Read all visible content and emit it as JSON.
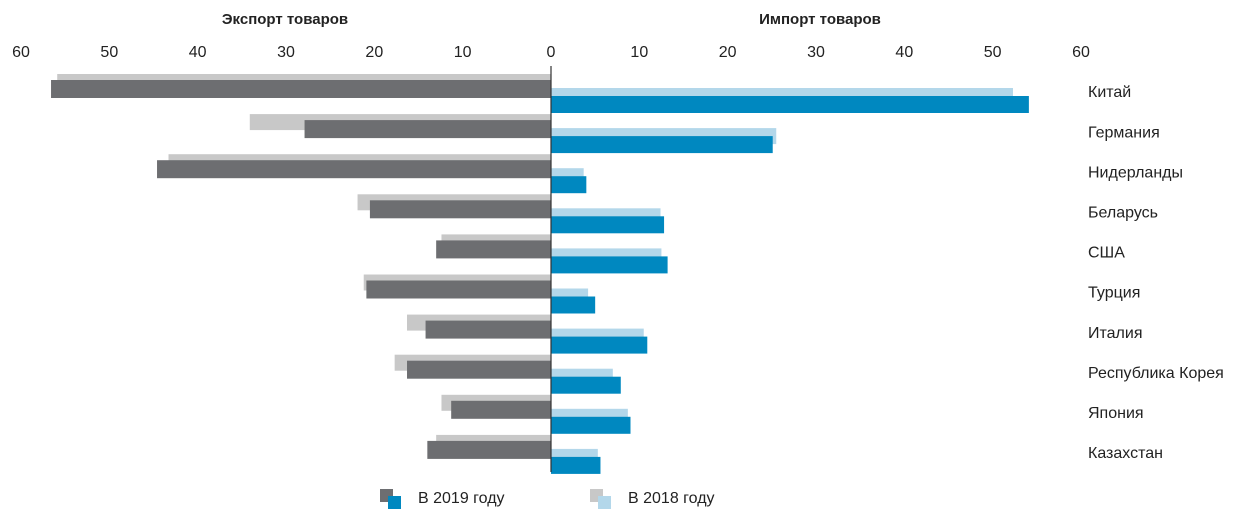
{
  "chart_data": [
    {
      "type": "bar",
      "orientation": "horizontal",
      "reversed": true,
      "title": "Экспорт товаров",
      "xlim": [
        0,
        60
      ],
      "xticks": [
        0,
        10,
        20,
        30,
        40,
        50,
        60
      ],
      "series": [
        {
          "name": "В 2019 году",
          "color": "#6d6e71",
          "values": [
            56.6,
            27.9,
            44.6,
            20.5,
            13.0,
            20.9,
            14.2,
            16.3,
            11.3,
            14.0
          ]
        },
        {
          "name": "В 2018 году",
          "color": "#c8c8c8",
          "values": [
            55.9,
            34.1,
            43.3,
            21.9,
            12.4,
            21.2,
            16.3,
            17.7,
            12.4,
            13.0
          ]
        }
      ]
    },
    {
      "type": "bar",
      "orientation": "horizontal",
      "reversed": false,
      "title": "Импорт товаров",
      "categories": [
        "Китай",
        "Германия",
        "Нидерланды",
        "Беларусь",
        "США",
        "Турция",
        "Италия",
        "Республика Корея",
        "Япония",
        "Казахстан"
      ],
      "xlim": [
        0,
        60
      ],
      "xticks": [
        10,
        20,
        30,
        40,
        50,
        60
      ],
      "series": [
        {
          "color": "#0088c0",
          "values": [
            54.1,
            25.1,
            4.0,
            12.8,
            13.2,
            5.0,
            10.9,
            7.9,
            9.0,
            5.6
          ]
        },
        {
          "color": "#b3d7ea",
          "values": [
            52.3,
            25.5,
            3.7,
            12.4,
            12.5,
            4.2,
            10.5,
            7.0,
            8.7,
            5.3
          ]
        }
      ]
    }
  ]
}
